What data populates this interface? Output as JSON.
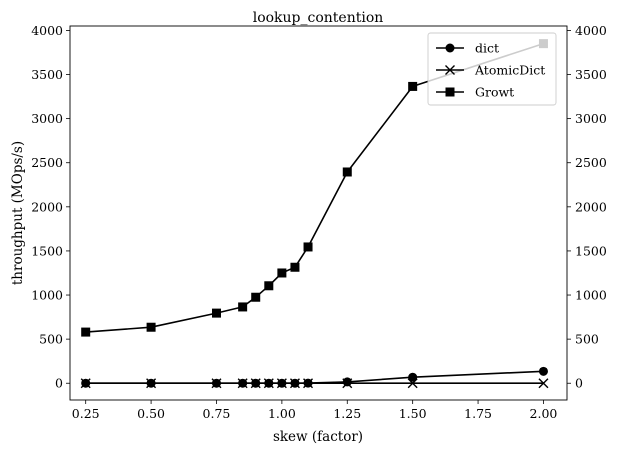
{
  "chart_data": {
    "type": "line",
    "title": "lookup_contention",
    "xlabel": "skew (factor)",
    "ylabel": "throughput (MOps/s)",
    "xlim": [
      0.19,
      2.09
    ],
    "ylim": [
      -190,
      4050
    ],
    "xticks": [
      "0.25",
      "0.50",
      "0.75",
      "1.00",
      "1.25",
      "1.50",
      "1.75",
      "2.00"
    ],
    "yticks": [
      "0",
      "500",
      "1000",
      "1500",
      "2000",
      "2500",
      "3000",
      "3500",
      "4000"
    ],
    "right_axis_ticks": true,
    "grid": false,
    "legend_position": "top-right",
    "x": [
      0.25,
      0.5,
      0.75,
      0.85,
      0.9,
      0.95,
      1.0,
      1.05,
      1.1,
      1.25,
      1.5,
      2.0
    ],
    "series": [
      {
        "name": "dict",
        "marker": "circle",
        "color": "#000000",
        "values": [
          0,
          0,
          0,
          0,
          0,
          0,
          0,
          0,
          2,
          15,
          68,
          135
        ]
      },
      {
        "name": "AtomicDict",
        "marker": "x",
        "color": "#000000",
        "values": [
          0,
          0,
          0,
          0,
          0,
          0,
          0,
          0,
          0,
          0,
          0,
          0
        ]
      },
      {
        "name": "Growt",
        "marker": "square",
        "color": "#000000",
        "values": [
          580,
          635,
          795,
          865,
          975,
          1105,
          1250,
          1315,
          1545,
          2395,
          3365,
          3850
        ]
      }
    ]
  }
}
